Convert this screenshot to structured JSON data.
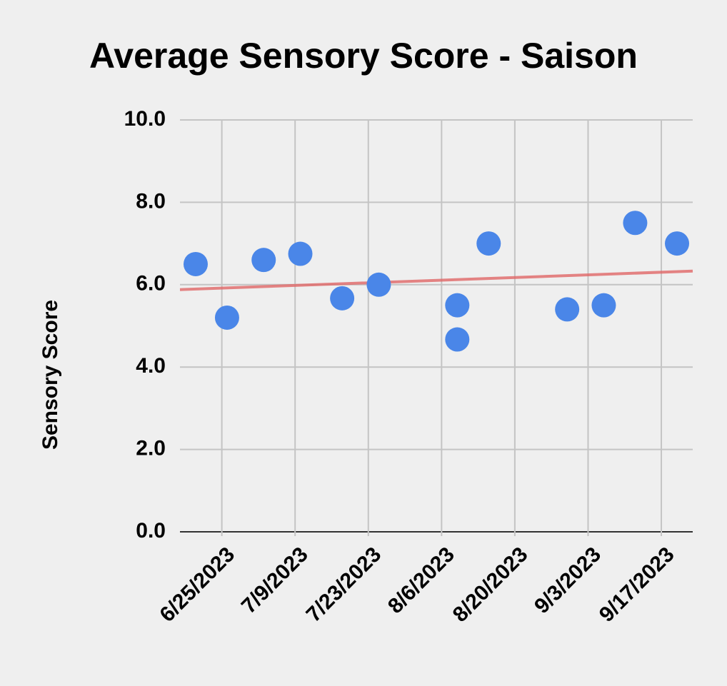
{
  "chart_data": {
    "type": "scatter",
    "title": "Average Sensory Score - Saison",
    "y_label": "Sensory Score",
    "x": [
      "6/20/2023",
      "6/26/2023",
      "7/3/2023",
      "7/10/2023",
      "7/18/2023",
      "7/25/2023",
      "8/9/2023",
      "8/9/2023",
      "8/15/2023",
      "8/30/2023",
      "9/6/2023",
      "9/12/2023",
      "9/20/2023"
    ],
    "series": [
      {
        "name": "Sensory Score",
        "color": "#4a86e8",
        "values": [
          6.5,
          5.2,
          6.6,
          6.75,
          5.67,
          6.0,
          5.5,
          4.67,
          7.0,
          5.4,
          5.5,
          7.5,
          7.0
        ]
      }
    ],
    "trendline": {
      "color": "#e06666",
      "x": [
        "6/17/2023",
        "9/23/2023"
      ],
      "values": [
        5.88,
        6.33
      ]
    },
    "xlim": [
      "6/17/2023",
      "9/23/2023"
    ],
    "xticks": [
      "6/25/2023",
      "7/9/2023",
      "7/23/2023",
      "8/6/2023",
      "8/20/2023",
      "9/3/2023",
      "9/17/2023"
    ],
    "ylim": [
      0,
      10
    ],
    "yticks": [
      {
        "value": 0,
        "label": "0.0"
      },
      {
        "value": 2,
        "label": "2.0"
      },
      {
        "value": 4,
        "label": "4.0"
      },
      {
        "value": 6,
        "label": "6.0"
      },
      {
        "value": 8,
        "label": "8.0"
      },
      {
        "value": 10,
        "label": "10.0"
      }
    ],
    "grid": true
  }
}
